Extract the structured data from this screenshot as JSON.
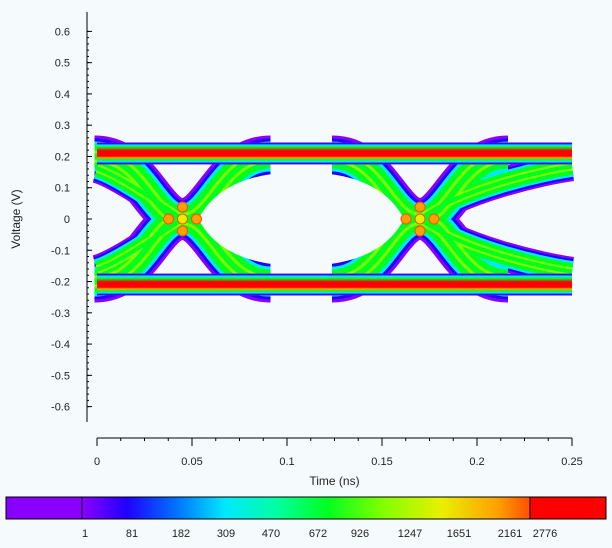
{
  "chart_data": {
    "type": "heatmap",
    "title": "",
    "xlabel": "Time   (ns)",
    "ylabel": "Voltage   (V)",
    "xlim": [
      0,
      0.25
    ],
    "ylim": [
      -0.63,
      0.63
    ],
    "x_ticks": [
      0,
      0.05,
      0.1,
      0.15,
      0.2,
      0.25
    ],
    "x_tick_labels": [
      "0",
      "0.05",
      "0.1",
      "0.15",
      "0.2",
      "0.25"
    ],
    "y_ticks": [
      0.6,
      0.5,
      0.4,
      0.3,
      0.2,
      0.1,
      0,
      -0.1,
      -0.2,
      -0.3,
      -0.4,
      -0.5,
      -0.6
    ],
    "y_tick_labels": [
      "0.6",
      "0.5",
      "0.4",
      "0.3",
      "0.2",
      "0.1",
      "0",
      "-0.1",
      "-0.2",
      "-0.3",
      "-0.4",
      "-0.5",
      "-0.6"
    ],
    "grid": false,
    "eye_diagram": {
      "unit_interval_ns": 0.125,
      "crossing_times_ns": [
        0.045,
        0.17
      ],
      "crossing_voltage_v": 0,
      "high_level_v": 0.2,
      "low_level_v": -0.2,
      "trace_extent_v": [
        -0.245,
        0.245
      ]
    },
    "colorbar": {
      "thresholds": [
        1,
        81,
        182,
        309,
        470,
        672,
        926,
        1247,
        1651,
        2161,
        2776
      ],
      "labels": [
        "1",
        "81",
        "182",
        "309",
        "470",
        "672",
        "926",
        "1247",
        "1651",
        "2161",
        "2776"
      ],
      "colors": [
        "#8a00ff",
        "#2000ff",
        "#0070ff",
        "#00e8ff",
        "#00ffa0",
        "#00ff20",
        "#80ff00",
        "#e8f000",
        "#ffa000",
        "#ff5000",
        "#ff0000"
      ]
    }
  }
}
